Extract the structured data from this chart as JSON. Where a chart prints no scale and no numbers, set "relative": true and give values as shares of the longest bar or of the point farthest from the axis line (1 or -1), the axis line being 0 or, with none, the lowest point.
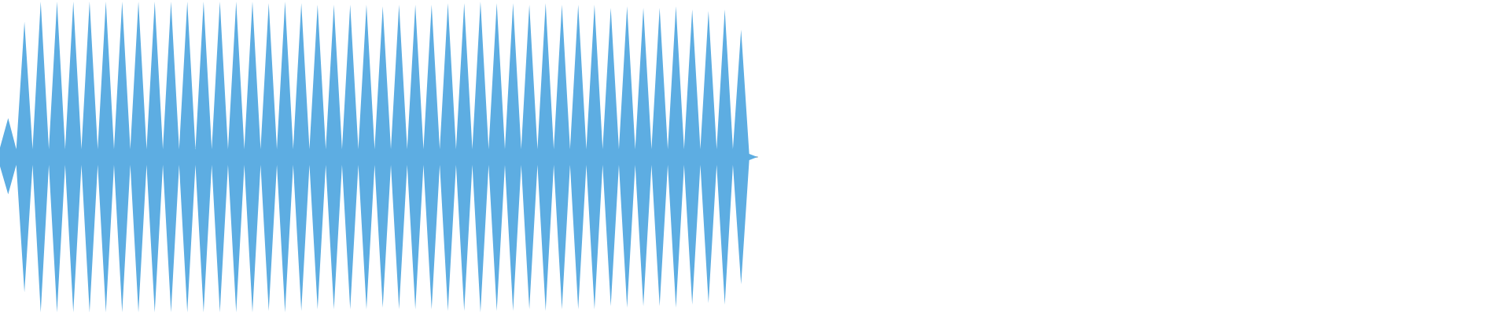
{
  "chart_data": {
    "type": "area",
    "relative": true,
    "categories": [
      null,
      null,
      null,
      null,
      null,
      null,
      null,
      null,
      null,
      null,
      null,
      null,
      null,
      null,
      null,
      null,
      null,
      null,
      null,
      null,
      null,
      null,
      null,
      null,
      null,
      null,
      null,
      null,
      null,
      null,
      null,
      null,
      null,
      null,
      null,
      null,
      null,
      null,
      null,
      null,
      null,
      null,
      null,
      null,
      null,
      null,
      null,
      null,
      null,
      null,
      null,
      null,
      null,
      null,
      null,
      null,
      null,
      null,
      null,
      null,
      null,
      null,
      null,
      null,
      null,
      null,
      null,
      null,
      null,
      null,
      null,
      null,
      null,
      null,
      null,
      null,
      null,
      null,
      null,
      null,
      null,
      null,
      null,
      null,
      null,
      null,
      null,
      null,
      null,
      null,
      null,
      null,
      null,
      null
    ],
    "series": [
      {
        "color": "#5dade2",
        "values": [
          0.06,
          0.25,
          0.05,
          0.87,
          0.05,
          1.0,
          0.05,
          1.0,
          0.05,
          1.0,
          0.05,
          1.0,
          0.05,
          1.0,
          0.05,
          1.0,
          0.05,
          1.0,
          0.05,
          1.0,
          0.05,
          1.0,
          0.05,
          1.0,
          0.05,
          1.0,
          0.05,
          1.0,
          0.05,
          1.0,
          0.05,
          1.0,
          0.05,
          0.99,
          0.05,
          1.0,
          0.05,
          0.99,
          0.05,
          0.98,
          0.05,
          0.98,
          0.05,
          0.98,
          0.05,
          0.98,
          0.05,
          0.97,
          0.05,
          0.98,
          0.05,
          0.98,
          0.05,
          0.98,
          0.05,
          0.99,
          0.05,
          0.99,
          0.05,
          1.0,
          0.05,
          0.99,
          0.05,
          0.99,
          0.05,
          0.98,
          0.05,
          0.99,
          0.05,
          0.98,
          0.05,
          0.98,
          0.05,
          0.98,
          0.05,
          0.96,
          0.05,
          0.97,
          0.05,
          0.96,
          0.05,
          0.96,
          0.05,
          0.97,
          0.05,
          0.95,
          0.05,
          0.94,
          0.05,
          0.95,
          0.05,
          0.82,
          0.02,
          0.0
        ]
      },
      {
        "color": "#5dade2",
        "values": [
          -0.06,
          -0.24,
          -0.05,
          -0.87,
          -0.05,
          -1.0,
          -0.05,
          -1.0,
          -0.05,
          -1.0,
          -0.05,
          -1.0,
          -0.05,
          -1.0,
          -0.05,
          -1.0,
          -0.05,
          -1.0,
          -0.05,
          -1.0,
          -0.05,
          -1.0,
          -0.05,
          -1.0,
          -0.05,
          -1.0,
          -0.05,
          -1.0,
          -0.05,
          -1.0,
          -0.05,
          -1.0,
          -0.05,
          -0.99,
          -0.05,
          -1.0,
          -0.05,
          -0.99,
          -0.05,
          -0.98,
          -0.05,
          -0.98,
          -0.05,
          -0.98,
          -0.05,
          -0.98,
          -0.05,
          -0.97,
          -0.05,
          -0.98,
          -0.05,
          -0.98,
          -0.05,
          -0.98,
          -0.05,
          -0.99,
          -0.05,
          -0.99,
          -0.05,
          -1.0,
          -0.05,
          -0.99,
          -0.05,
          -0.99,
          -0.05,
          -0.98,
          -0.05,
          -0.99,
          -0.05,
          -0.98,
          -0.05,
          -0.98,
          -0.05,
          -0.98,
          -0.05,
          -0.96,
          -0.05,
          -0.97,
          -0.05,
          -0.96,
          -0.05,
          -0.96,
          -0.05,
          -0.97,
          -0.05,
          -0.95,
          -0.05,
          -0.94,
          -0.05,
          -0.95,
          -0.05,
          -0.82,
          -0.02,
          0.0
        ]
      }
    ]
  }
}
